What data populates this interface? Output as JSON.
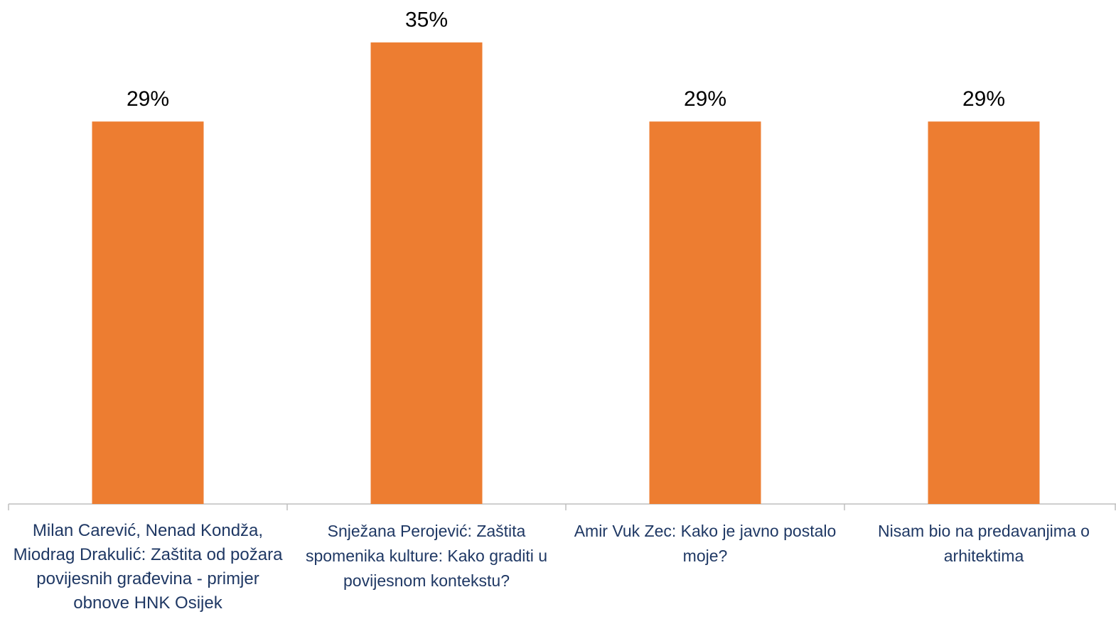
{
  "chart_data": {
    "type": "bar",
    "categories": [
      "Milan Carević, Nenad Kondža, Miodrag Drakulić: Zaštita od požara povijesnih građevina - primjer obnove HNK Osijek",
      "Snježana Perojević: Zaštita spomenika kulture: Kako graditi u povijesnom kontekstu?",
      "Amir Vuk Zec: Kako je javno postalo moje?",
      "Nisam bio na predavanjima o arhitektima"
    ],
    "values": [
      29,
      35,
      29,
      29
    ],
    "value_labels": [
      "29%",
      "35%",
      "29%",
      "29%"
    ],
    "color": "#ed7d31",
    "ylim": [
      0,
      38
    ]
  }
}
